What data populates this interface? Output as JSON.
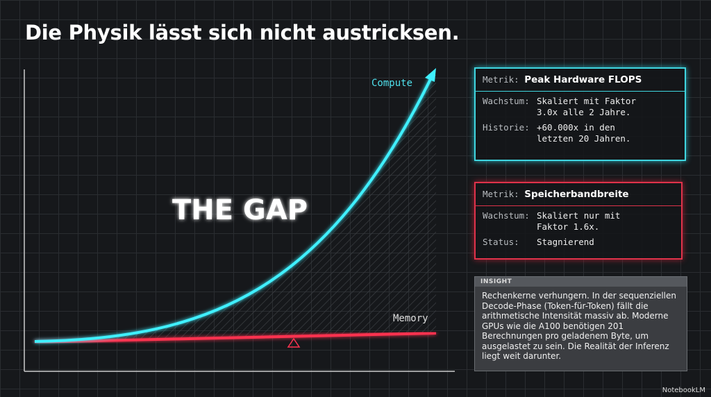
{
  "header": {
    "title": "Die Physik lässt sich nicht austricksen."
  },
  "graphic": {
    "compute_label": "Compute",
    "memory_label": "Memory",
    "gap_label": "THE GAP"
  },
  "cards": [
    {
      "label": "Metrik:",
      "value": "Peak Hardware FLOPS",
      "rows": [
        {
          "key": "Wachstum:",
          "text": "Skaliert mit Faktor 3.0x alle 2 Jahre."
        },
        {
          "key": "Historie:",
          "text": "+60.000x in den letzten 20 Jahren."
        }
      ]
    },
    {
      "label": "Metrik:",
      "value": "Speicherbandbreite",
      "rows": [
        {
          "key": "Wachstum:",
          "text": "Skaliert nur mit Faktor 1.6x."
        },
        {
          "key": "Status:",
          "text": "Stagnierend"
        }
      ]
    }
  ],
  "insight": {
    "label": "INSIGHT",
    "text": "Rechenkerne verhungern. In der sequenziellen Decode-Phase (Token-für-Token) fällt die arithmetische Intensität massiv ab. Moderne GPUs wie die A100 benötigen 201 Berechnungen pro geladenem Byte, um ausgelastet zu sein. Die Realität der Inferenz liegt weit darunter."
  },
  "footer": {
    "brand": "NotebookLM"
  }
}
